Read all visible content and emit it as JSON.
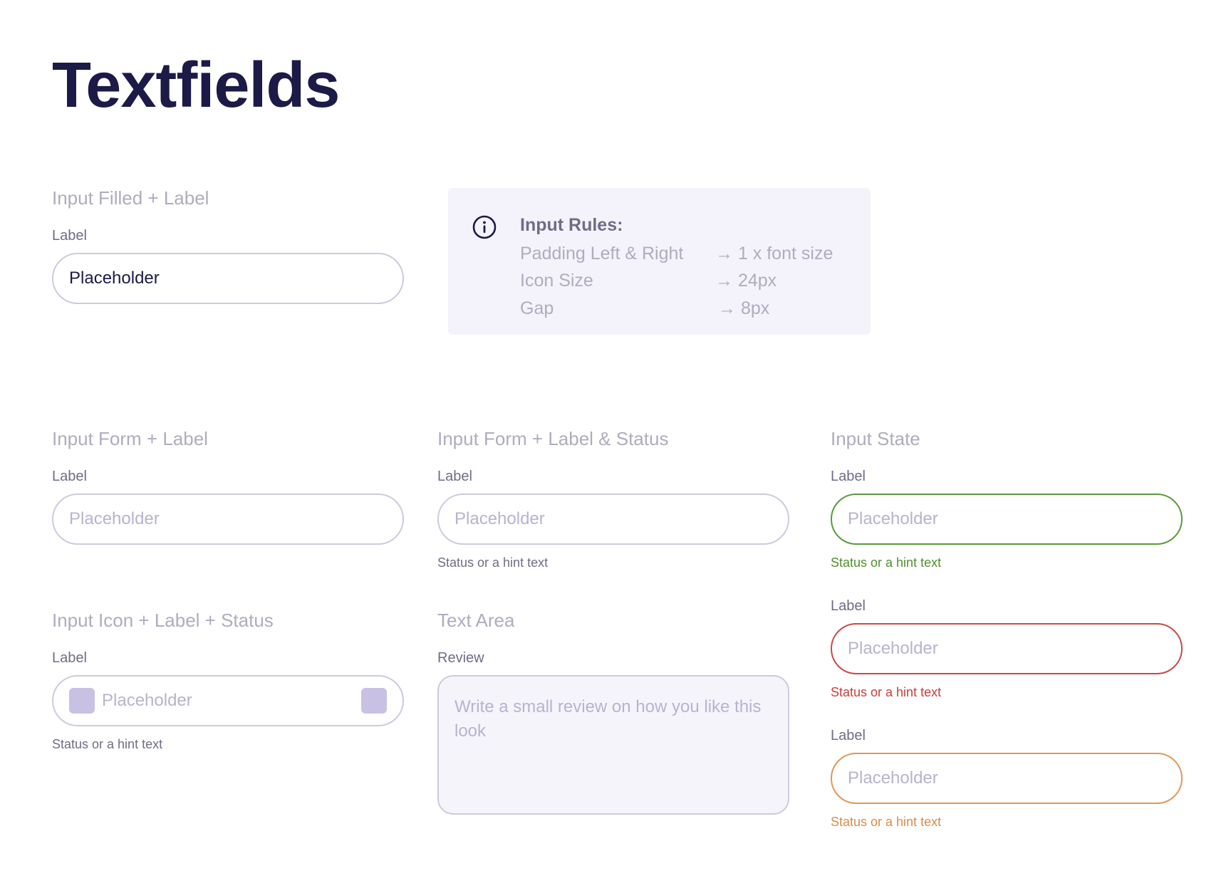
{
  "page": {
    "title": "Textfields"
  },
  "filled": {
    "section_title": "Input Filled + Label",
    "label": "Label",
    "value": "Placeholder"
  },
  "rules": {
    "title": "Input Rules:",
    "items": [
      {
        "name": "Padding Left & Right",
        "value": "→ 1 x font size"
      },
      {
        "name": "Icon Size",
        "value": "→ 24px"
      },
      {
        "name": "Gap",
        "value": "→ 8px"
      }
    ]
  },
  "form": {
    "section_title": "Input Form + Label",
    "label": "Label",
    "placeholder": "Placeholder"
  },
  "form_status": {
    "section_title": "Input Form + Label & Status",
    "label": "Label",
    "placeholder": "Placeholder",
    "hint": "Status or a hint text"
  },
  "state": {
    "section_title": "Input State",
    "success": {
      "label": "Label",
      "placeholder": "Placeholder",
      "hint": "Status or a hint text",
      "color": "#5a9a3a"
    },
    "error": {
      "label": "Label",
      "placeholder": "Placeholder",
      "hint": "Status or a hint text",
      "color": "#c8494a"
    },
    "warning": {
      "label": "Label",
      "placeholder": "Placeholder",
      "hint": "Status or a hint text",
      "color": "#e09858"
    }
  },
  "icon_input": {
    "section_title": "Input Icon + Label + Status",
    "label": "Label",
    "placeholder": "Placeholder",
    "hint": "Status or a hint text",
    "leading_icon": "square-icon",
    "trailing_icon": "square-icon"
  },
  "textarea": {
    "section_title": "Text Area",
    "label": "Review",
    "placeholder": "Write a small review on how you like this look"
  },
  "colors": {
    "title": "#1c1a47",
    "section_title": "#aeadbf",
    "label": "#6f6c86",
    "border": "#cdcbdc",
    "icon_fill": "#c9c1e3",
    "rules_bg": "#f4f3fb"
  }
}
